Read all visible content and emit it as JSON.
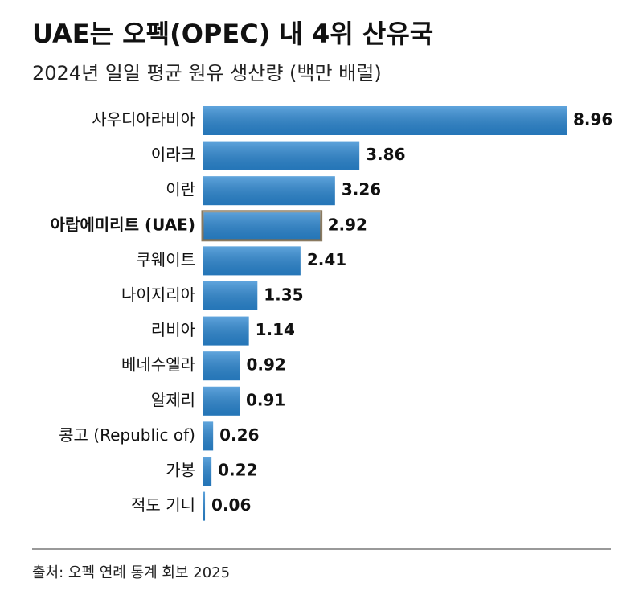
{
  "chart_data": {
    "type": "hbar",
    "title": "UAE는 오펙(OPEC) 내 4위 산유국",
    "subtitle": "2024년 일일 평균 원유 생산량 (백만 배럴)",
    "categories": [
      "사우디아라비아",
      "이라크",
      "이란",
      "아랍에미리트 (UAE)",
      "쿠웨이트",
      "나이지리아",
      "리비아",
      "베네수엘라",
      "알제리",
      "콩고 (Republic of)",
      "가봉",
      "적도 기니"
    ],
    "values": [
      8.96,
      3.86,
      3.26,
      2.92,
      2.41,
      1.35,
      1.14,
      0.92,
      0.91,
      0.26,
      0.22,
      0.06
    ],
    "color": "#2a86d1",
    "highlight": 3,
    "source": "출처: 오펙 연례 통계 회보 2025"
  }
}
